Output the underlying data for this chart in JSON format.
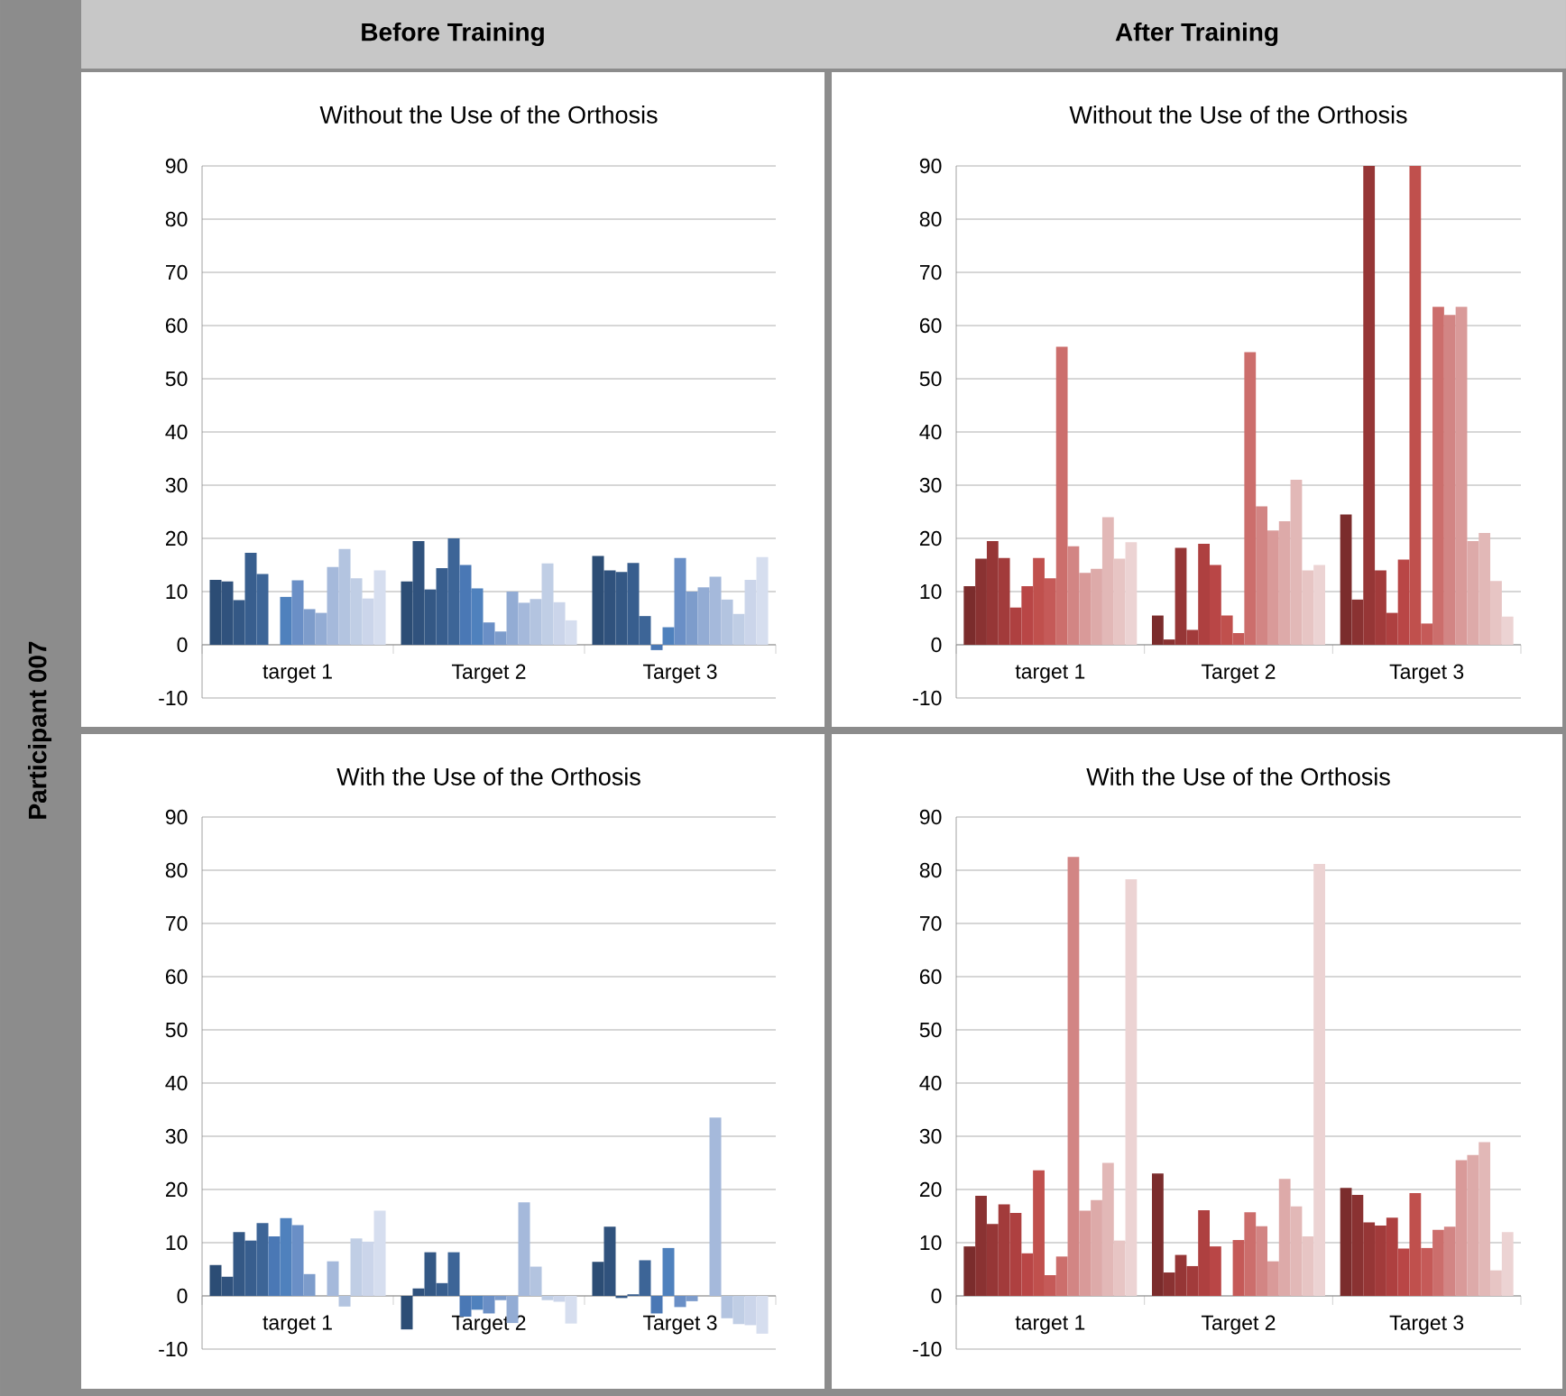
{
  "chart_data": [
    {
      "type": "bar",
      "title": "Without the Use of the Orthosis",
      "annotations": [
        "Before Training",
        "Participant 007"
      ],
      "categories": [
        "target 1",
        "Target 2",
        "Target 3"
      ],
      "ylim": [
        -10,
        90
      ],
      "yticks": [
        -10,
        0,
        10,
        20,
        30,
        40,
        50,
        60,
        70,
        80,
        90
      ],
      "grid": "y",
      "series": [
        {
          "color": "#2c4d75",
          "values": [
            12.2,
            11.9,
            16.7
          ]
        },
        {
          "color": "#30527d",
          "values": [
            11.9,
            19.5,
            14
          ]
        },
        {
          "color": "#345885",
          "values": [
            8.4,
            10.4,
            13.7
          ]
        },
        {
          "color": "#385e8e",
          "values": [
            17.3,
            14.4,
            15.4
          ]
        },
        {
          "color": "#3d6597",
          "values": [
            13.3,
            20,
            5.4
          ]
        },
        {
          "color": "#4a78b5",
          "values": [
            0,
            15,
            -1
          ]
        },
        {
          "color": "#4f81bd",
          "values": [
            9,
            10.6,
            3.3
          ]
        },
        {
          "color": "#6a8fc6",
          "values": [
            12.1,
            4.2,
            16.3
          ]
        },
        {
          "color": "#7d9ccb",
          "values": [
            6.7,
            2.5,
            10
          ]
        },
        {
          "color": "#93acd4",
          "values": [
            6,
            10,
            10.8
          ]
        },
        {
          "color": "#a5b9db",
          "values": [
            14.6,
            7.9,
            12.8
          ]
        },
        {
          "color": "#b3c4e0",
          "values": [
            18,
            8.6,
            8.5
          ]
        },
        {
          "color": "#c0cee5",
          "values": [
            12.5,
            15.3,
            5.8
          ]
        },
        {
          "color": "#cbd5ea",
          "values": [
            8.7,
            8,
            12.2
          ]
        },
        {
          "color": "#d6deef",
          "values": [
            14,
            4.6,
            16.5
          ]
        }
      ]
    },
    {
      "type": "bar",
      "title": "Without the Use of the Orthosis",
      "annotations": [
        "After Training"
      ],
      "categories": [
        "target 1",
        "Target 2",
        "Target 3"
      ],
      "ylim": [
        -10,
        90
      ],
      "yticks": [
        -10,
        0,
        10,
        20,
        30,
        40,
        50,
        60,
        70,
        80,
        90
      ],
      "grid": "y",
      "series": [
        {
          "color": "#7b2c2c",
          "values": [
            11,
            5.5,
            24.5
          ]
        },
        {
          "color": "#8a3232",
          "values": [
            16.2,
            1,
            8.5
          ]
        },
        {
          "color": "#963636",
          "values": [
            19.5,
            18.2,
            90
          ]
        },
        {
          "color": "#a23b3b",
          "values": [
            16.3,
            2.8,
            14
          ]
        },
        {
          "color": "#ae4040",
          "values": [
            7,
            19,
            6
          ]
        },
        {
          "color": "#b94646",
          "values": [
            11,
            15,
            16
          ]
        },
        {
          "color": "#c0504d",
          "values": [
            16.3,
            5.5,
            90
          ]
        },
        {
          "color": "#c55a58",
          "values": [
            12.5,
            2.2,
            4
          ]
        },
        {
          "color": "#cc6e6c",
          "values": [
            56,
            55,
            63.5
          ]
        },
        {
          "color": "#d28584",
          "values": [
            18.5,
            26,
            62
          ]
        },
        {
          "color": "#d99a99",
          "values": [
            13.5,
            21.5,
            63.5
          ]
        },
        {
          "color": "#ddaaa9",
          "values": [
            14.3,
            23.2,
            19.5
          ]
        },
        {
          "color": "#e2b8b7",
          "values": [
            24,
            31,
            21
          ]
        },
        {
          "color": "#e7c5c4",
          "values": [
            16.2,
            14,
            12
          ]
        },
        {
          "color": "#ecd3d3",
          "values": [
            19.3,
            15,
            5.3
          ]
        }
      ]
    },
    {
      "type": "bar",
      "title": "With the Use of the Orthosis",
      "categories": [
        "target 1",
        "Target 2",
        "Target 3"
      ],
      "ylim": [
        -10,
        90
      ],
      "yticks": [
        -10,
        0,
        10,
        20,
        30,
        40,
        50,
        60,
        70,
        80,
        90
      ],
      "grid": "y",
      "series": [
        {
          "color": "#2c4d75",
          "values": [
            5.8,
            -6.3,
            6.4
          ]
        },
        {
          "color": "#30527d",
          "values": [
            3.6,
            1.4,
            13
          ]
        },
        {
          "color": "#345885",
          "values": [
            12,
            8.2,
            -0.4
          ]
        },
        {
          "color": "#385e8e",
          "values": [
            10.4,
            2.4,
            0.3
          ]
        },
        {
          "color": "#3d6597",
          "values": [
            13.7,
            8.2,
            6.7
          ]
        },
        {
          "color": "#4a78b5",
          "values": [
            11.2,
            -3.9,
            -3.3
          ]
        },
        {
          "color": "#4f81bd",
          "values": [
            14.6,
            -2.6,
            9
          ]
        },
        {
          "color": "#6a8fc6",
          "values": [
            13.3,
            -3.3,
            -2.1
          ]
        },
        {
          "color": "#7d9ccb",
          "values": [
            4.1,
            -0.8,
            -1
          ]
        },
        {
          "color": "#93acd4",
          "values": [
            0,
            -5.1,
            0
          ]
        },
        {
          "color": "#a5b9db",
          "values": [
            6.5,
            17.6,
            33.5
          ]
        },
        {
          "color": "#b3c4e0",
          "values": [
            -2,
            5.5,
            -4.2
          ]
        },
        {
          "color": "#c0cee5",
          "values": [
            10.8,
            -0.8,
            -5.3
          ]
        },
        {
          "color": "#cbd5ea",
          "values": [
            10.2,
            -1.1,
            -5.5
          ]
        },
        {
          "color": "#d6deef",
          "values": [
            16,
            -5.2,
            -7.1
          ]
        }
      ]
    },
    {
      "type": "bar",
      "title": "With the Use of the Orthosis",
      "categories": [
        "target 1",
        "Target 2",
        "Target 3"
      ],
      "ylim": [
        -10,
        90
      ],
      "yticks": [
        -10,
        0,
        10,
        20,
        30,
        40,
        50,
        60,
        70,
        80,
        90
      ],
      "grid": "y",
      "series": [
        {
          "color": "#7b2c2c",
          "values": [
            9.3,
            23,
            20.3
          ]
        },
        {
          "color": "#8a3232",
          "values": [
            18.8,
            4.4,
            19
          ]
        },
        {
          "color": "#963636",
          "values": [
            13.5,
            7.7,
            13.8
          ]
        },
        {
          "color": "#a23b3b",
          "values": [
            17.2,
            5.6,
            13.2
          ]
        },
        {
          "color": "#ae4040",
          "values": [
            15.6,
            16.1,
            14.7
          ]
        },
        {
          "color": "#b94646",
          "values": [
            8,
            9.3,
            8.9
          ]
        },
        {
          "color": "#c0504d",
          "values": [
            23.6,
            0,
            19.3
          ]
        },
        {
          "color": "#c55a58",
          "values": [
            3.9,
            10.5,
            9
          ]
        },
        {
          "color": "#cc6e6c",
          "values": [
            7.4,
            15.7,
            12.4
          ]
        },
        {
          "color": "#d28584",
          "values": [
            82.5,
            13.1,
            13
          ]
        },
        {
          "color": "#d99a99",
          "values": [
            16,
            6.5,
            25.5
          ]
        },
        {
          "color": "#ddaaa9",
          "values": [
            18,
            22,
            26.5
          ]
        },
        {
          "color": "#e2b8b7",
          "values": [
            25,
            16.8,
            28.9
          ]
        },
        {
          "color": "#e7c5c4",
          "values": [
            10.4,
            11.2,
            4.8
          ]
        },
        {
          "color": "#ecd3d3",
          "values": [
            78.3,
            81.2,
            12
          ]
        }
      ]
    }
  ]
}
